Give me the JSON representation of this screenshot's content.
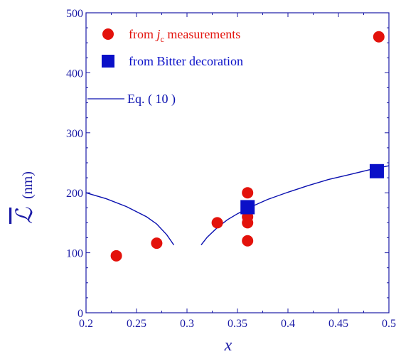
{
  "chart_data": {
    "type": "scatter",
    "xlabel": "x",
    "ylabel": "ℒ (nm)",
    "ylabel_symbol": "ℒ",
    "ylabel_unit": "(nm)",
    "xlim": [
      0.2,
      0.5
    ],
    "ylim": [
      0,
      500
    ],
    "xticks": [
      "0.2",
      "0.25",
      "0.3",
      "0.35",
      "0.4",
      "0.45",
      "0.5"
    ],
    "yticks": [
      "0",
      "100",
      "200",
      "300",
      "400",
      "500"
    ],
    "legend_position": "top-left",
    "grid": false,
    "colors": {
      "axis": "#1a1aa6",
      "jc": "#e3120b",
      "bitter": "#0a10c8",
      "eq": "#0a10b0"
    },
    "legend": {
      "jc_prefix": "from ",
      "jc_symbol": "j",
      "jc_sub": "c",
      "jc_suffix": " measurements",
      "bitter": "from Bitter decoration",
      "eq": "Eq. ( 10 )"
    },
    "series": [
      {
        "key": "jc",
        "marker": "circle",
        "points": [
          {
            "x": 0.23,
            "y": 95
          },
          {
            "x": 0.27,
            "y": 116
          },
          {
            "x": 0.33,
            "y": 150
          },
          {
            "x": 0.36,
            "y": 120
          },
          {
            "x": 0.36,
            "y": 150
          },
          {
            "x": 0.36,
            "y": 160
          },
          {
            "x": 0.36,
            "y": 200
          },
          {
            "x": 0.49,
            "y": 460
          }
        ]
      },
      {
        "key": "bitter",
        "marker": "square",
        "points": [
          {
            "x": 0.36,
            "y": 176
          },
          {
            "x": 0.488,
            "y": 236
          }
        ]
      },
      {
        "key": "eq",
        "marker": "line",
        "segments": [
          [
            {
              "x": 0.2,
              "y": 200
            },
            {
              "x": 0.22,
              "y": 190
            },
            {
              "x": 0.24,
              "y": 177
            },
            {
              "x": 0.26,
              "y": 160
            },
            {
              "x": 0.27,
              "y": 148
            },
            {
              "x": 0.28,
              "y": 130
            },
            {
              "x": 0.287,
              "y": 113
            }
          ],
          [
            {
              "x": 0.314,
              "y": 113
            },
            {
              "x": 0.32,
              "y": 126
            },
            {
              "x": 0.33,
              "y": 142
            },
            {
              "x": 0.34,
              "y": 155
            },
            {
              "x": 0.35,
              "y": 165
            },
            {
              "x": 0.36,
              "y": 174
            },
            {
              "x": 0.38,
              "y": 189
            },
            {
              "x": 0.4,
              "y": 201
            },
            {
              "x": 0.42,
              "y": 212
            },
            {
              "x": 0.44,
              "y": 222
            },
            {
              "x": 0.46,
              "y": 230
            },
            {
              "x": 0.48,
              "y": 238
            },
            {
              "x": 0.5,
              "y": 245
            }
          ]
        ]
      }
    ]
  }
}
